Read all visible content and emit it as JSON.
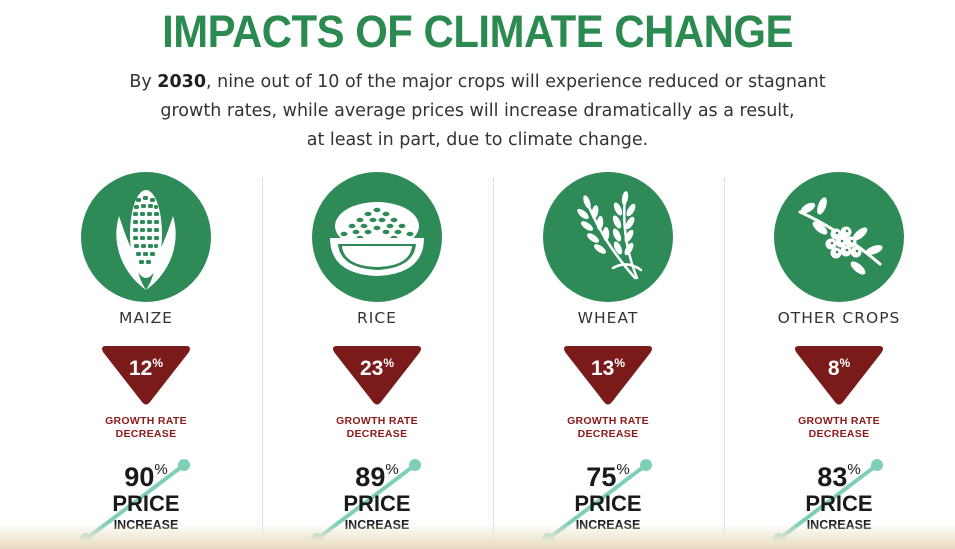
{
  "title": "IMPACTS OF CLIMATE CHANGE",
  "subtitle": {
    "lead": "By ",
    "year": "2030",
    "line1_rest": ", nine out of 10 of the major crops will experience reduced or stagnant",
    "line2": "growth rates, while average prices will increase dramatically as a result,",
    "line3": "at least in part, due to climate change."
  },
  "colors": {
    "title_green": "#2b8a4f",
    "icon_green": "#2e8b57",
    "triangle_maroon": "#7a1a1a",
    "growth_label_red": "#8b1a1a",
    "price_line_teal": "#7fcfb8"
  },
  "crops": [
    {
      "name": "MAIZE",
      "icon": "maize-icon",
      "growth_value": "12",
      "growth_unit": "%",
      "growth_label_1": "GROWTH RATE",
      "growth_label_2": "DECREASE",
      "price_value": "90",
      "price_unit": "%",
      "price_label": "PRICE",
      "price_sub": "INCREASE"
    },
    {
      "name": "RICE",
      "icon": "rice-bowl-icon",
      "growth_value": "23",
      "growth_unit": "%",
      "growth_label_1": "GROWTH RATE",
      "growth_label_2": "DECREASE",
      "price_value": "89",
      "price_unit": "%",
      "price_label": "PRICE",
      "price_sub": "INCREASE"
    },
    {
      "name": "WHEAT",
      "icon": "wheat-icon",
      "growth_value": "13",
      "growth_unit": "%",
      "growth_label_1": "GROWTH RATE",
      "growth_label_2": "DECREASE",
      "price_value": "75",
      "price_unit": "%",
      "price_label": "PRICE",
      "price_sub": "INCREASE"
    },
    {
      "name": "OTHER CROPS",
      "icon": "coffee-branch-icon",
      "growth_value": "8",
      "growth_unit": "%",
      "growth_label_1": "GROWTH RATE",
      "growth_label_2": "DECREASE",
      "price_value": "83",
      "price_unit": "%",
      "price_label": "PRICE",
      "price_sub": "INCREASE"
    }
  ]
}
